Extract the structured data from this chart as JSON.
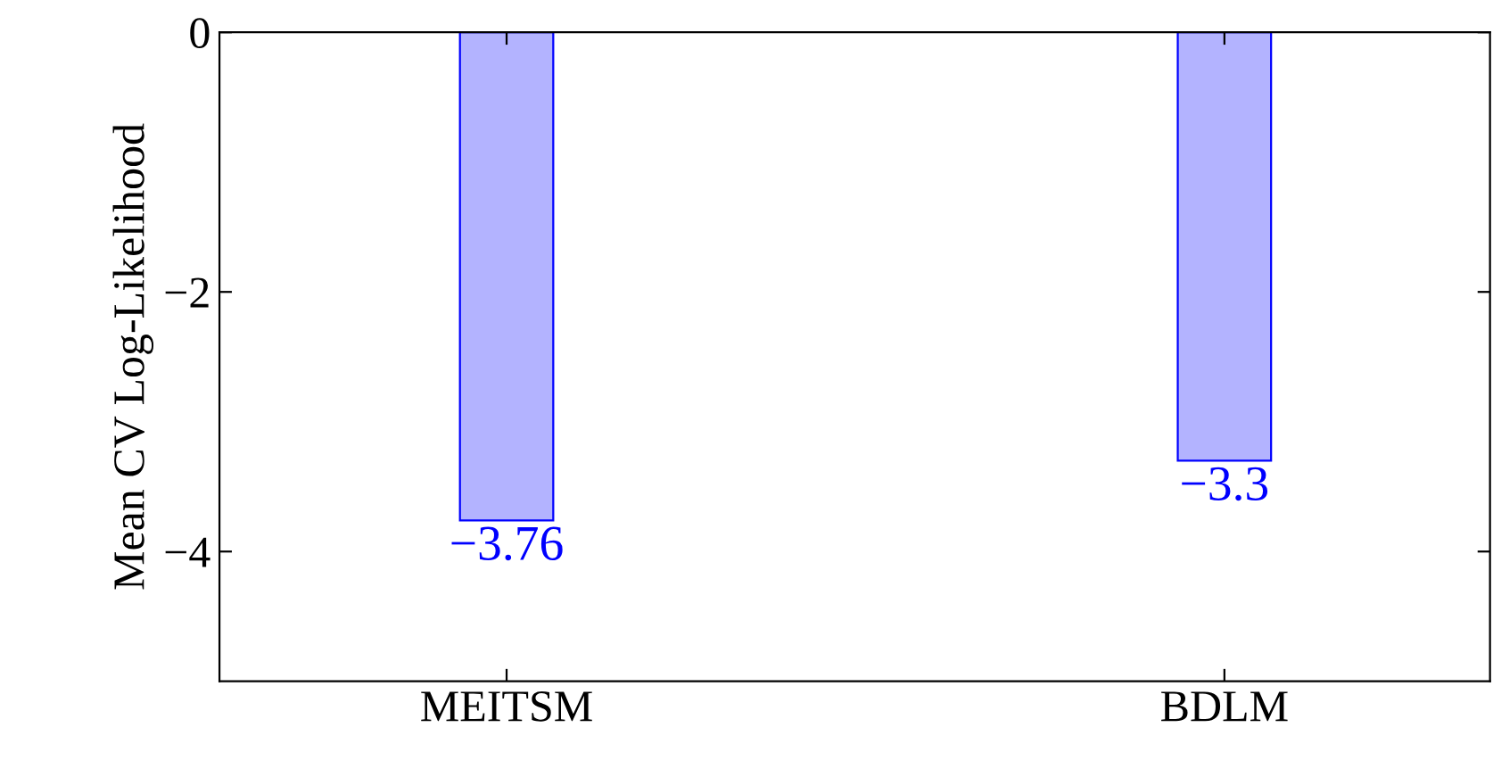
{
  "chart_data": {
    "type": "bar",
    "ylabel": "Mean CV Log-Likelihood",
    "categories": [
      "MEITSM",
      "BDLM"
    ],
    "series": [
      {
        "color": "#b3b3ff",
        "values": [
          -3.76,
          -3.3
        ],
        "value_labels": [
          "−3.76",
          "−3.3"
        ]
      }
    ],
    "ylim": [
      -5,
      0
    ],
    "yticks": [
      {
        "value": 0,
        "label": "0"
      },
      {
        "value": -2,
        "label": "−2"
      },
      {
        "value": -4,
        "label": "−4"
      }
    ],
    "grid": false,
    "legend": false
  }
}
